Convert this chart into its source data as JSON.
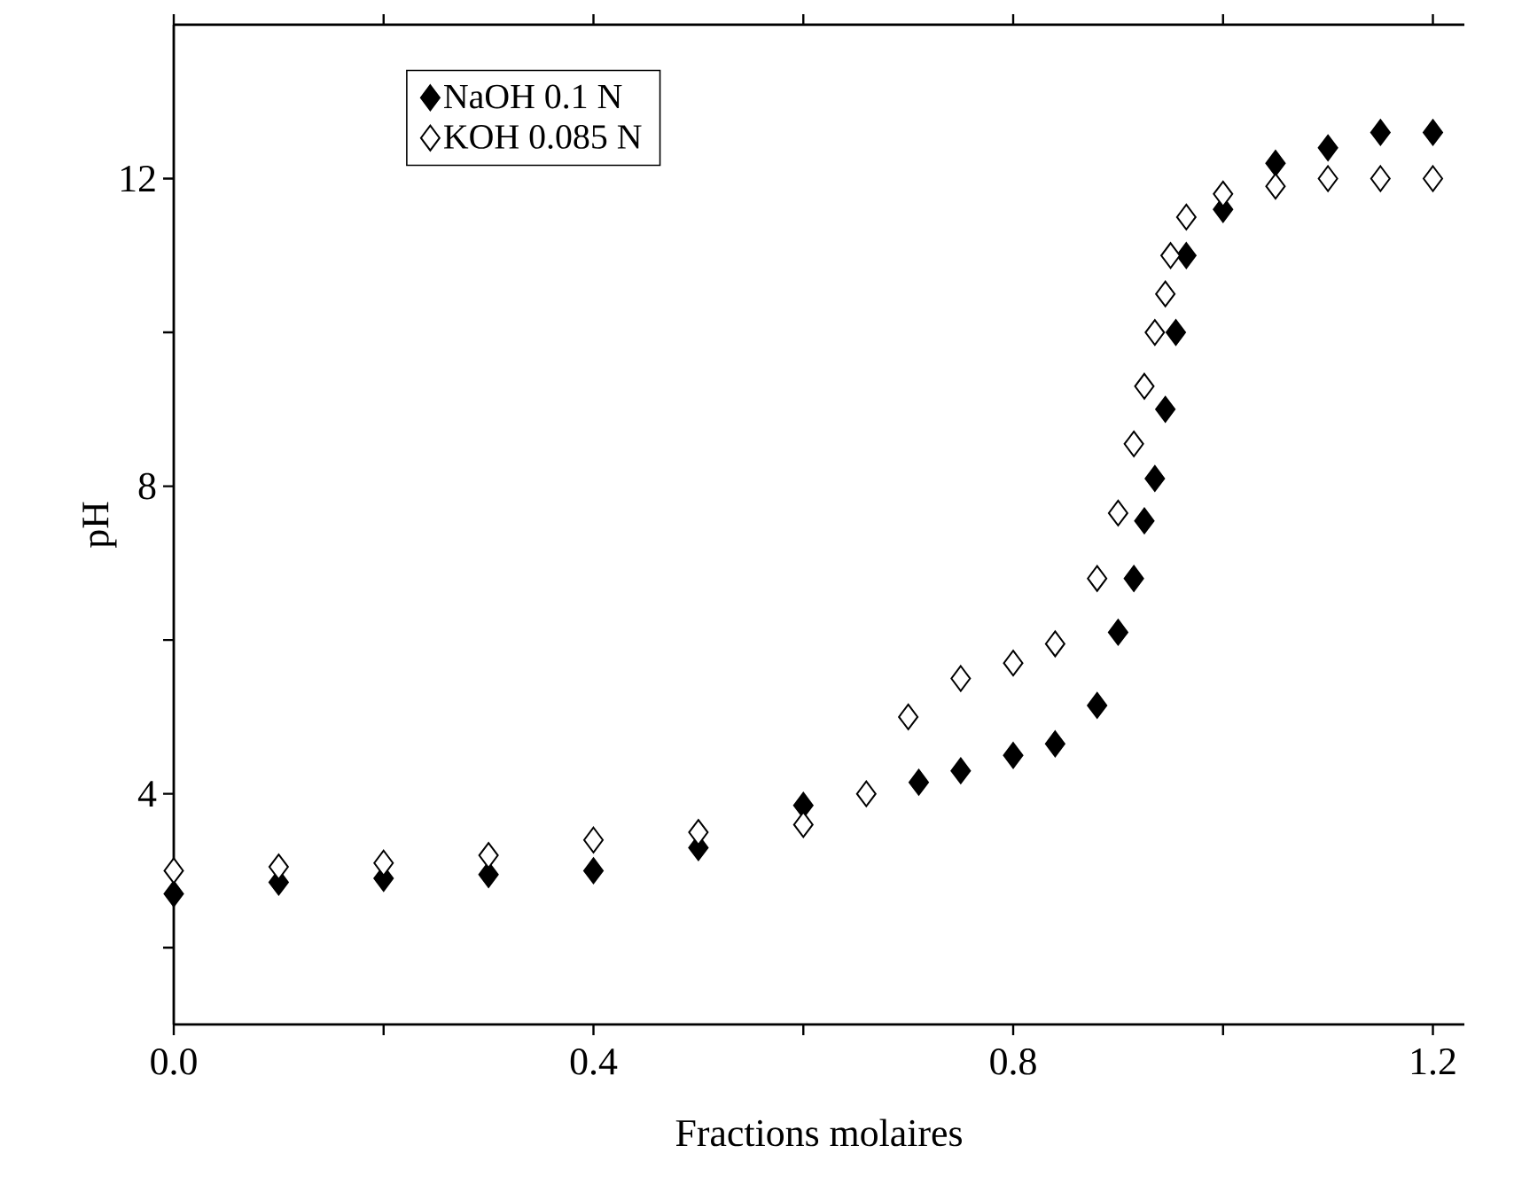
{
  "chart_data": {
    "type": "scatter",
    "xlabel": "Fractions molaires",
    "ylabel": "pH",
    "xlim": [
      0,
      1.23
    ],
    "ylim": [
      1,
      14
    ],
    "xticks": [
      {
        "value": 0,
        "label": "0.0"
      },
      {
        "value": 0.2,
        "label": null
      },
      {
        "value": 0.4,
        "label": "0.4"
      },
      {
        "value": 0.6,
        "label": null
      },
      {
        "value": 0.8,
        "label": "0.8"
      },
      {
        "value": 1.0,
        "label": null
      },
      {
        "value": 1.2,
        "label": "1.2"
      }
    ],
    "yticks": [
      {
        "value": 2,
        "label": null
      },
      4,
      {
        "value": 6,
        "label": null
      },
      8,
      {
        "value": 10,
        "label": null
      },
      12
    ],
    "marker": "diamond",
    "legend": "top left",
    "grid": false,
    "series": [
      {
        "name": "NaOH 0.1 N",
        "color": "#000000",
        "x": [
          0,
          0.1,
          0.2,
          0.3,
          0.4,
          0.5,
          0.6,
          0.71,
          0.75,
          0.8,
          0.84,
          0.88,
          0.9,
          0.915,
          0.925,
          0.935,
          0.945,
          0.955,
          0.965,
          1.0,
          1.05,
          1.1,
          1.15,
          1.2
        ],
        "values": [
          2.7,
          2.85,
          2.9,
          2.95,
          3.0,
          3.3,
          3.85,
          4.15,
          4.3,
          4.5,
          4.65,
          5.15,
          6.1,
          6.8,
          7.55,
          8.1,
          9.0,
          10.0,
          11.0,
          11.6,
          12.2,
          12.4,
          12.6,
          12.6
        ]
      },
      {
        "name": "KOH 0.085 N",
        "color": "#ffffff",
        "x": [
          0,
          0.1,
          0.2,
          0.3,
          0.4,
          0.5,
          0.6,
          0.66,
          0.7,
          0.75,
          0.8,
          0.84,
          0.88,
          0.9,
          0.915,
          0.925,
          0.935,
          0.945,
          0.95,
          0.965,
          1.0,
          1.05,
          1.1,
          1.15,
          1.2
        ],
        "values": [
          3.0,
          3.05,
          3.1,
          3.2,
          3.4,
          3.5,
          3.6,
          4.0,
          5.0,
          5.5,
          5.7,
          5.95,
          6.8,
          7.65,
          8.55,
          9.3,
          10.0,
          10.5,
          11.0,
          11.5,
          11.8,
          11.9,
          12.0,
          12.0,
          12.0
        ]
      }
    ]
  }
}
